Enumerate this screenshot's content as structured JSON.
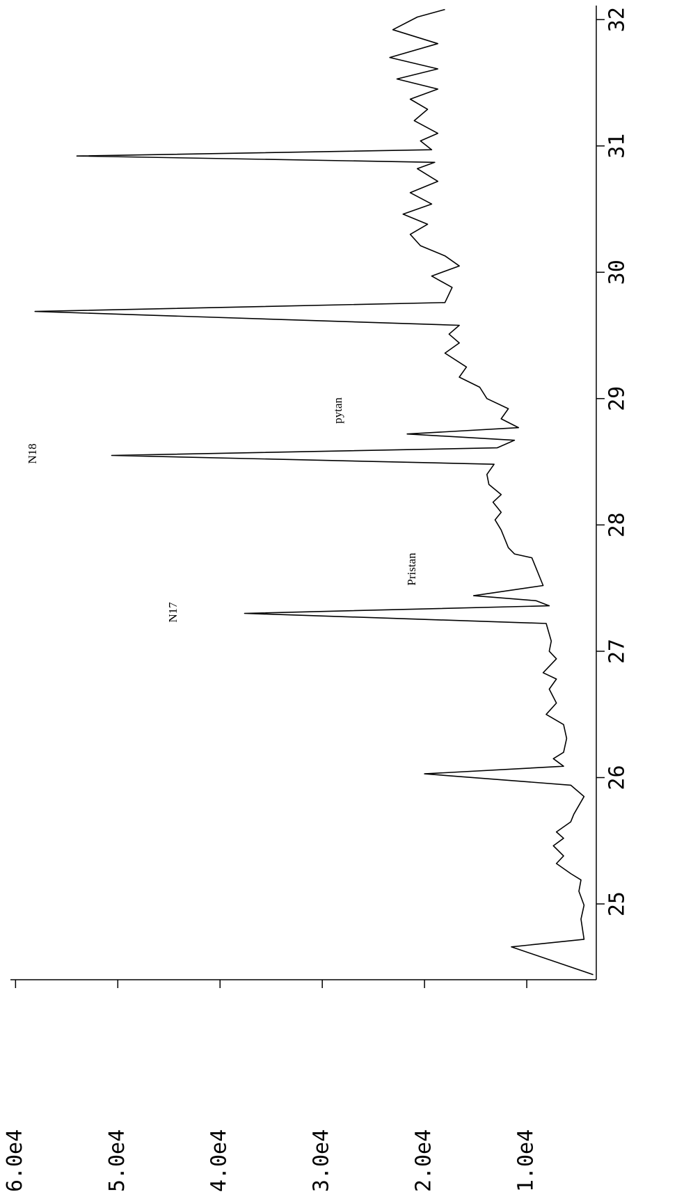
{
  "chart_data": {
    "type": "line",
    "x": [
      24.44,
      24.66,
      24.72,
      24.88,
      24.99,
      25.1,
      25.19,
      25.24,
      25.32,
      25.38,
      25.46,
      25.52,
      25.57,
      25.65,
      25.71,
      25.85,
      25.94,
      26.03,
      26.09,
      26.15,
      26.2,
      26.31,
      26.42,
      26.5,
      26.59,
      26.7,
      26.78,
      26.83,
      26.94,
      27.0,
      27.08,
      27.22,
      27.3,
      27.36,
      27.4,
      27.44,
      27.52,
      27.66,
      27.74,
      27.77,
      27.82,
      27.96,
      28.04,
      28.1,
      28.18,
      28.24,
      28.32,
      28.4,
      28.48,
      28.55,
      28.61,
      28.67,
      28.72,
      28.77,
      28.84,
      28.92,
      29.0,
      29.09,
      29.17,
      29.25,
      29.36,
      29.44,
      29.51,
      29.58,
      29.69,
      29.76,
      29.88,
      29.97,
      30.05,
      30.13,
      30.21,
      30.3,
      30.38,
      30.46,
      30.54,
      30.63,
      30.72,
      30.82,
      30.87,
      30.92,
      30.97,
      31.04,
      31.1,
      31.2,
      31.29,
      31.37,
      31.45,
      31.53,
      31.61,
      31.7,
      31.81,
      31.92,
      32.02,
      32.08
    ],
    "series": [
      {
        "color": "#000000",
        "values": [
          3500,
          11500,
          4400,
          4700,
          4400,
          4900,
          4700,
          5700,
          7100,
          6400,
          7400,
          6400,
          7100,
          5700,
          5400,
          4400,
          5700,
          20000,
          6400,
          7400,
          6400,
          6100,
          6400,
          8100,
          7100,
          7800,
          7100,
          8400,
          7100,
          7800,
          7600,
          8100,
          37600,
          7800,
          9100,
          15200,
          8400,
          9100,
          9500,
          11200,
          11800,
          12500,
          13100,
          12500,
          13300,
          12500,
          13700,
          13900,
          13200,
          50600,
          12900,
          11200,
          21700,
          10800,
          12500,
          11800,
          13900,
          14600,
          16600,
          15900,
          18000,
          16600,
          17600,
          16600,
          58100,
          18000,
          17300,
          19300,
          16600,
          18000,
          20400,
          21400,
          19700,
          22100,
          19300,
          21400,
          18700,
          20700,
          19000,
          54000,
          19300,
          20400,
          18700,
          21000,
          19700,
          21400,
          18700,
          22700,
          18700,
          23400,
          18700,
          23100,
          20700,
          18000
        ]
      }
    ],
    "xlim": [
      24.4,
      32.1
    ],
    "xticks": [
      25,
      26,
      27,
      28,
      29,
      30,
      31,
      32
    ],
    "ylim": [
      3200,
      60500
    ],
    "yticks": [
      {
        "value": 10000,
        "label": "1.0e4"
      },
      {
        "value": 20000,
        "label": "2.0e4"
      },
      {
        "value": 30000,
        "label": "3.0e4"
      },
      {
        "value": 40000,
        "label": "4.0e4"
      },
      {
        "value": 50000,
        "label": "5.0e4"
      },
      {
        "value": 60000,
        "label": "6.0e4"
      }
    ],
    "annotations": [
      "N17",
      "N18",
      "Pristan",
      "pytan"
    ]
  }
}
